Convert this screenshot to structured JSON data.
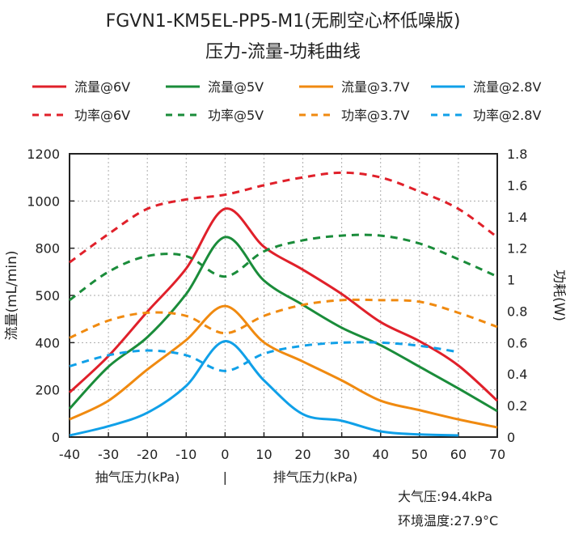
{
  "chart_data": {
    "type": "line",
    "title": "FGVN1-KM5EL-PP5-M1(无刷空心杯低噪版)",
    "subtitle": "压力-流量-功耗曲线",
    "ylabel": "流量(mL/min)",
    "y2label": "功耗(W)",
    "xlabel_left": "抽气压力(kPa)",
    "xlabel_sep": "|",
    "xlabel_right": "排气压力(kPa)",
    "xlim": [
      -40,
      70
    ],
    "ylim": [
      0,
      1200
    ],
    "y2lim": [
      0,
      1.8
    ],
    "xticks": [
      "-40",
      "-30",
      "-20",
      "-10",
      "0",
      "10",
      "20",
      "30",
      "40",
      "50",
      "60",
      "70"
    ],
    "yticks": [
      "0",
      "200",
      "400",
      "500",
      "800",
      "1000",
      "1200"
    ],
    "y2ticks": [
      "0",
      "0.2",
      "0.4",
      "0.6",
      "0.8",
      "1",
      "1.2",
      "1.4",
      "1.6",
      "1.8"
    ],
    "grid": true,
    "legend_position": "top",
    "series": [
      {
        "name": "流量@6V",
        "axis": "left",
        "style": "solid",
        "color": "#e0202a",
        "x": [
          -40,
          -30,
          -20,
          -10,
          0,
          10,
          20,
          30,
          40,
          50,
          60,
          70
        ],
        "values": [
          189,
          343,
          531,
          714,
          967,
          806,
          709,
          606,
          487,
          406,
          303,
          154
        ]
      },
      {
        "name": "流量@5V",
        "axis": "left",
        "style": "solid",
        "color": "#1a8c3a",
        "x": [
          -40,
          -30,
          -20,
          -10,
          0,
          10,
          20,
          30,
          40,
          50,
          60,
          70
        ],
        "values": [
          120,
          298,
          423,
          606,
          847,
          663,
          560,
          463,
          389,
          298,
          206,
          110
        ]
      },
      {
        "name": "流量@3.7V",
        "axis": "left",
        "style": "solid",
        "color": "#f08a10",
        "x": [
          -40,
          -30,
          -20,
          -10,
          0,
          10,
          20,
          30,
          40,
          50,
          60,
          70
        ],
        "values": [
          75,
          154,
          286,
          411,
          555,
          401,
          320,
          240,
          154,
          114,
          75,
          41
        ]
      },
      {
        "name": "流量@2.8V",
        "axis": "left",
        "style": "solid",
        "color": "#10a0e8",
        "x": [
          -40,
          -30,
          -20,
          -10,
          0,
          10,
          20,
          30,
          40,
          50,
          60
        ],
        "values": [
          7,
          46,
          103,
          217,
          406,
          240,
          97,
          69,
          24,
          11,
          7
        ]
      },
      {
        "name": "功率@6V",
        "axis": "right",
        "style": "dashed",
        "color": "#e0202a",
        "x": [
          -40,
          -30,
          -20,
          -10,
          0,
          10,
          20,
          30,
          40,
          50,
          60,
          70
        ],
        "values": [
          1.11,
          1.29,
          1.45,
          1.51,
          1.54,
          1.6,
          1.65,
          1.68,
          1.65,
          1.56,
          1.45,
          1.27
        ]
      },
      {
        "name": "功率@5V",
        "axis": "right",
        "style": "dashed",
        "color": "#1a8c3a",
        "x": [
          -40,
          -30,
          -20,
          -10,
          0,
          10,
          20,
          30,
          40,
          50,
          60,
          70
        ],
        "values": [
          0.87,
          1.05,
          1.15,
          1.15,
          1.02,
          1.18,
          1.25,
          1.28,
          1.28,
          1.23,
          1.13,
          1.02
        ]
      },
      {
        "name": "功率@3.7V",
        "axis": "right",
        "style": "dashed",
        "color": "#f08a10",
        "x": [
          -40,
          -30,
          -20,
          -10,
          0,
          10,
          20,
          30,
          40,
          50,
          60,
          70
        ],
        "values": [
          0.63,
          0.74,
          0.79,
          0.77,
          0.66,
          0.77,
          0.84,
          0.87,
          0.87,
          0.86,
          0.79,
          0.7
        ]
      },
      {
        "name": "功率@2.8V",
        "axis": "right",
        "style": "dashed",
        "color": "#10a0e8",
        "x": [
          -40,
          -30,
          -20,
          -10,
          0,
          10,
          20,
          30,
          40,
          50,
          60
        ],
        "values": [
          0.45,
          0.52,
          0.55,
          0.52,
          0.42,
          0.53,
          0.58,
          0.6,
          0.6,
          0.58,
          0.54
        ]
      }
    ],
    "annotations": [
      "大气压:94.4kPa",
      "环境温度:27.9°C"
    ]
  }
}
